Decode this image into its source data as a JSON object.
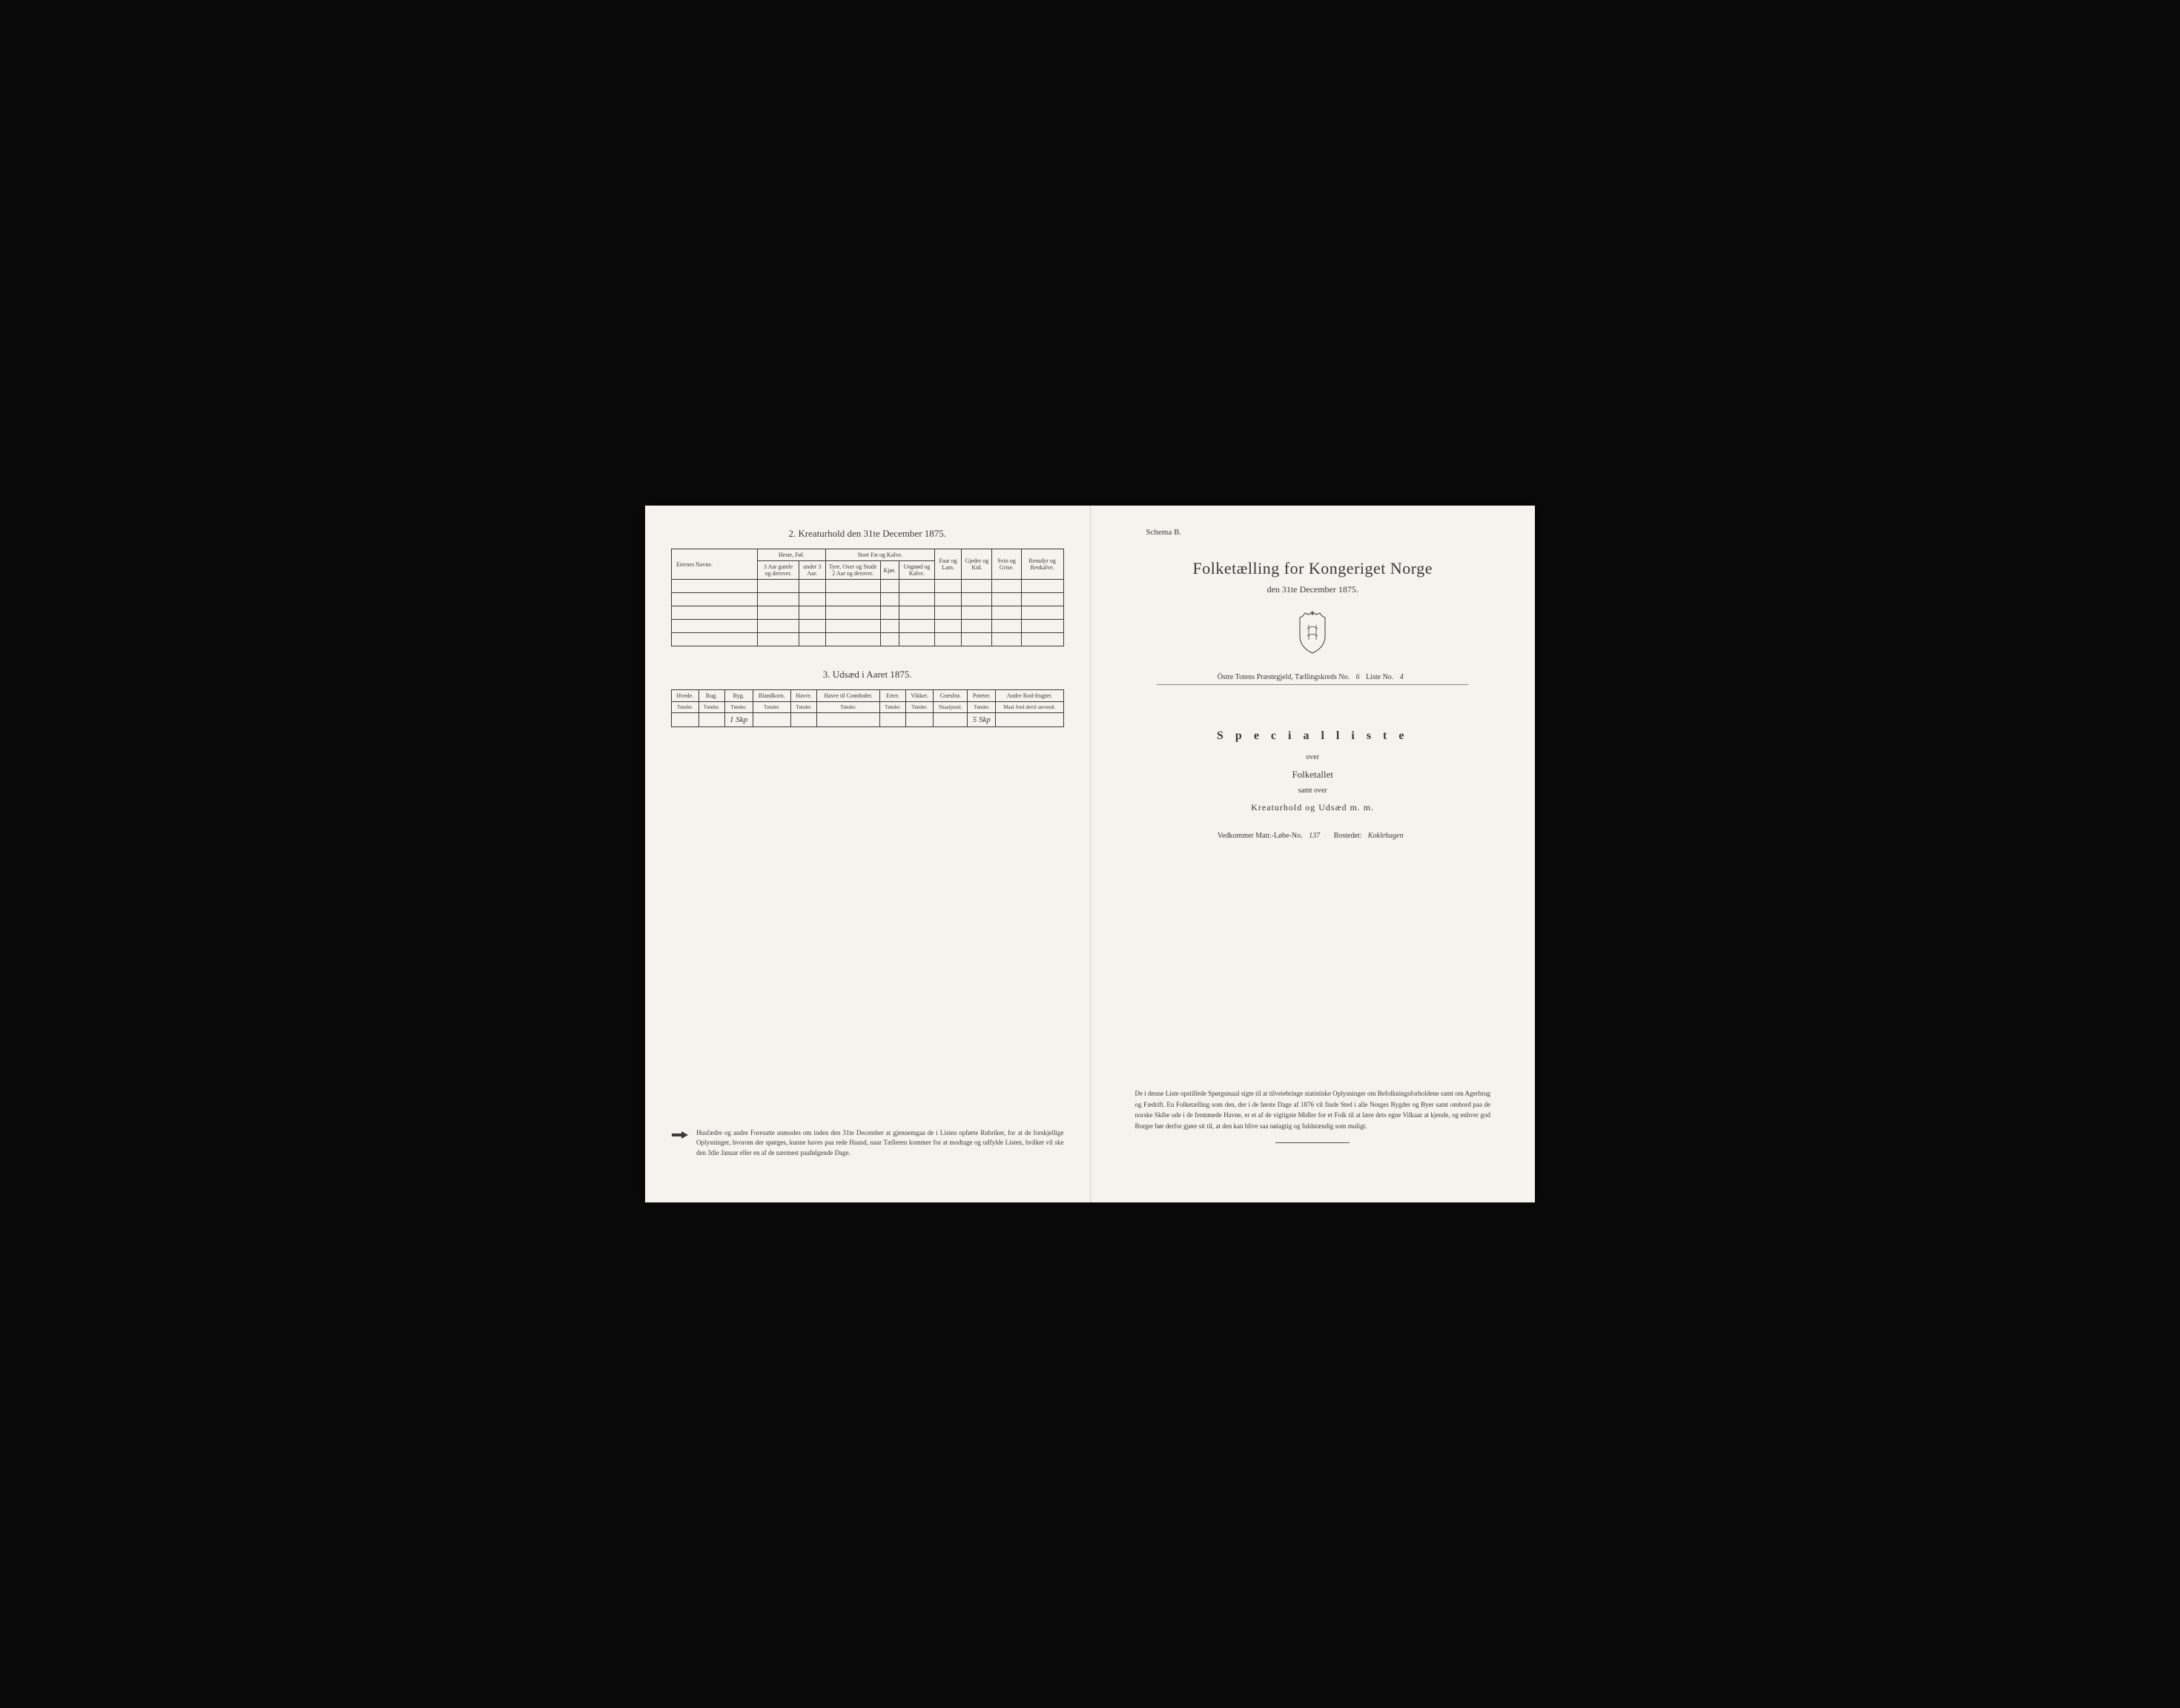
{
  "left": {
    "section2_title": "2. Kreaturhold den 31te December 1875.",
    "table1": {
      "row_label_header": "Eiernes Navne.",
      "group_headers": [
        "Heste, Føl.",
        "Stort Fæ og Kalve."
      ],
      "col_headers": [
        "3 Aar gamle og derover.",
        "under 3 Aar.",
        "Tyre, Oxer og Stude 2 Aar og derover.",
        "Kjør.",
        "Ungnød og Kalve.",
        "Faar og Lam.",
        "Gjeder og Kid.",
        "Svin og Grise.",
        "Rensdyr og Renkalve."
      ],
      "rows": [
        [
          "",
          "",
          "",
          "",
          "",
          "",
          "",
          "",
          "",
          ""
        ],
        [
          "",
          "",
          "",
          "",
          "",
          "",
          "",
          "",
          "",
          ""
        ],
        [
          "",
          "",
          "",
          "",
          "",
          "",
          "",
          "",
          "",
          ""
        ],
        [
          "",
          "",
          "",
          "",
          "",
          "",
          "",
          "",
          "",
          ""
        ],
        [
          "",
          "",
          "",
          "",
          "",
          "",
          "",
          "",
          "",
          ""
        ]
      ]
    },
    "section3_title": "3. Udsæd i Aaret 1875.",
    "table2": {
      "headers": [
        "Hvede.",
        "Rug.",
        "Byg.",
        "Blandkorn.",
        "Havre.",
        "Havre til Grønfoder.",
        "Erter.",
        "Vikker.",
        "Græsfrø.",
        "Poteter.",
        "Andre Rod-frugter."
      ],
      "subheaders": [
        "Tønder.",
        "Tønder.",
        "Tønder.",
        "Tønder.",
        "Tønder.",
        "Tønder.",
        "Tønder.",
        "Tønder.",
        "Skaalpund.",
        "Tønder.",
        "Maal Jord dertil anvendt."
      ],
      "row": [
        "",
        "",
        "1 Skp",
        "",
        "",
        "",
        "",
        "",
        "",
        "5 Skp",
        ""
      ]
    },
    "footnote": "Husfædre og andre Foresatte anmodes om inden den 31te December at gjennemgaa de i Listen opførte Rubriker, for at de forskjellige Oplysninger, hvorom der spørges, kunne haves paa rede Haand, naar Tælleren kommer for at modtage og udfylde Listen, hvilket vil ske den 3die Januar eller en af de nærmest paafølgende Dage."
  },
  "right": {
    "schema": "Schema B.",
    "title": "Folketælling for Kongeriget Norge",
    "date": "den 31te December 1875.",
    "district_prefix": "Östre Totens Præstegjeld, Tællingskreds No.",
    "district_no": "6",
    "liste_label": "Liste No.",
    "liste_no": "4",
    "specialliste": "S p e c i a l l i s t e",
    "over": "over",
    "folketallet": "Folketallet",
    "samt_over": "samt over",
    "kreaturhold": "Kreaturhold og Udsæd m. m.",
    "vedkommer_label": "Vedkommer Matr.-Løbe-No.",
    "vedkommer_no": "137",
    "bostedet_label": "Bostedet:",
    "bostedet_value": "Koklehagen",
    "footnote": "De i denne Liste opstillede Spørgsmaal sigte til at tilveiebringe statistiske Oplysninger om Befolkningsforholdene samt om Agerbrug og Fædrift. En Folketælling som den, der i de første Dage af 1876 vil finde Sted i alle Norges Bygder og Byer samt ombord paa de norske Skibe ude i de fremmede Havne, er et af de vigtigste Midler for et Folk til at lære dets egne Vilkaar at kjende, og enhver god Borger bør derfor gjøre sit til, at den kan blive saa nøiagtig og fuldstændig som muligt."
  },
  "colors": {
    "paper": "#f5f3ed",
    "ink": "#3a3a3a",
    "frame": "#0a0a0a"
  }
}
